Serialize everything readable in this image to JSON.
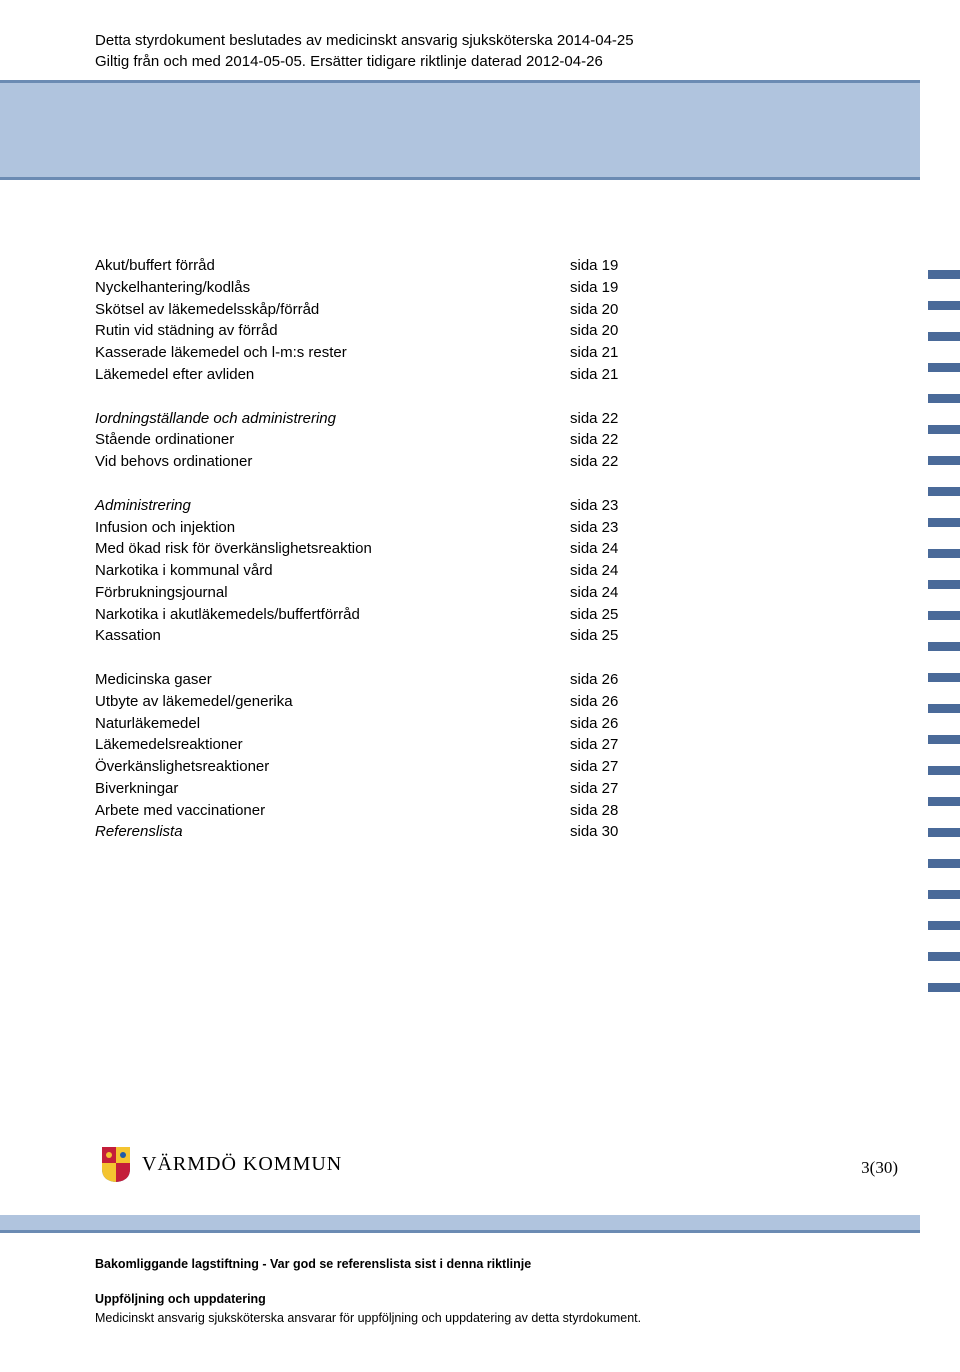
{
  "colors": {
    "band_bg": "#b0c4de",
    "band_line": "#6b8bb3",
    "tick_color": "#4a6a99",
    "shield_blue": "#1e5aa8",
    "shield_red": "#c41e3a",
    "shield_gold": "#f4c430",
    "text": "#000000",
    "page_bg": "#ffffff"
  },
  "header": {
    "line1": "Detta styrdokument beslutades av medicinskt ansvarig sjuksköterska 2014-04-25",
    "line2": "Giltig från och med 2014-05-05. Ersätter tidigare riktlinje daterad 2012-04-26"
  },
  "toc_groups": [
    {
      "rows": [
        {
          "label": "Akut/buffert förråd",
          "page": "sida 19",
          "italic": false
        },
        {
          "label": "Nyckelhantering/kodlås",
          "page": "sida 19",
          "italic": false
        },
        {
          "label": "Skötsel av läkemedelsskåp/förråd",
          "page": "sida 20",
          "italic": false
        },
        {
          "label": "Rutin vid städning av förråd",
          "page": "sida 20",
          "italic": false
        },
        {
          "label": "Kasserade läkemedel och l-m:s rester",
          "page": "sida 21",
          "italic": false
        },
        {
          "label": "Läkemedel efter avliden",
          "page": "sida 21",
          "italic": false
        }
      ]
    },
    {
      "rows": [
        {
          "label": "Iordningställande och administrering",
          "page": "sida 22",
          "italic": true
        },
        {
          "label": "Stående ordinationer",
          "page": "sida 22",
          "italic": false
        },
        {
          "label": "Vid behovs ordinationer",
          "page": "sida 22",
          "italic": false
        }
      ]
    },
    {
      "rows": [
        {
          "label": "Administrering",
          "page": "sida 23",
          "italic": true
        },
        {
          "label": "Infusion och injektion",
          "page": "sida 23",
          "italic": false
        },
        {
          "label": "Med ökad risk för överkänslighetsreaktion",
          "page": "sida 24",
          "italic": false
        },
        {
          "label": "Narkotika i kommunal vård",
          "page": "sida 24",
          "italic": false
        },
        {
          "label": "Förbrukningsjournal",
          "page": "sida 24",
          "italic": false
        },
        {
          "label": "Narkotika i akutläkemedels/buffertförråd",
          "page": "sida 25",
          "italic": false
        },
        {
          "label": "Kassation",
          "page": "sida 25",
          "italic": false
        }
      ]
    },
    {
      "rows": [
        {
          "label": "Medicinska gaser",
          "page": "sida 26",
          "italic": false
        },
        {
          "label": "Utbyte av läkemedel/generika",
          "page": "sida 26",
          "italic": false
        },
        {
          "label": "Naturläkemedel",
          "page": "sida 26",
          "italic": false
        },
        {
          "label": "Läkemedelsreaktioner",
          "page": "sida 27",
          "italic": false
        },
        {
          "label": "Överkänslighetsreaktioner",
          "page": "sida 27",
          "italic": false
        },
        {
          "label": "Biverkningar",
          "page": "sida 27",
          "italic": false
        },
        {
          "label": "Arbete med vaccinationer",
          "page": "sida 28",
          "italic": false
        },
        {
          "label": "Referenslista",
          "page": "sida 30",
          "italic": true
        }
      ]
    }
  ],
  "side_tick_count": 24,
  "logo_text": "VÄRMDÖ KOMMUN",
  "page_number": "3(30)",
  "footer": {
    "line1_bold": "Bakomliggande lagstiftning - Var god se referenslista sist i denna riktlinje",
    "line2_bold": "Uppföljning och uppdatering",
    "line3": "Medicinskt ansvarig sjuksköterska ansvarar för uppföljning och uppdatering av detta styrdokument."
  }
}
